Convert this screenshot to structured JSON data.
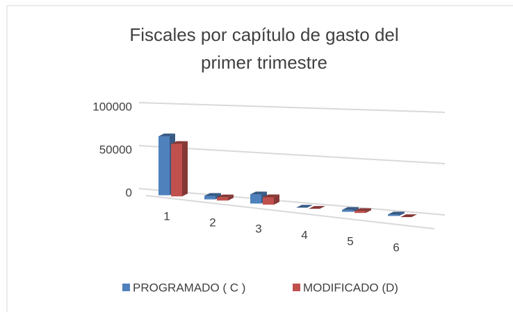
{
  "chart_data": {
    "type": "bar3d",
    "title": "Fiscales por capítulo de gasto del primer trimestre",
    "categories": [
      "1",
      "2",
      "3",
      "4",
      "5",
      "6"
    ],
    "series": [
      {
        "name": "PROGRAMADO ( C )",
        "color": "#4f81bd",
        "values": [
          68000,
          4000,
          10000,
          0,
          2000,
          1500
        ]
      },
      {
        "name": "MODIFICADO (D)",
        "color": "#c0504d",
        "values": [
          60000,
          3500,
          8000,
          0,
          2000,
          0
        ]
      }
    ],
    "ylim": [
      0,
      100000
    ],
    "yticks": [
      0,
      50000,
      100000
    ],
    "grid": true,
    "legend": "bottom"
  }
}
